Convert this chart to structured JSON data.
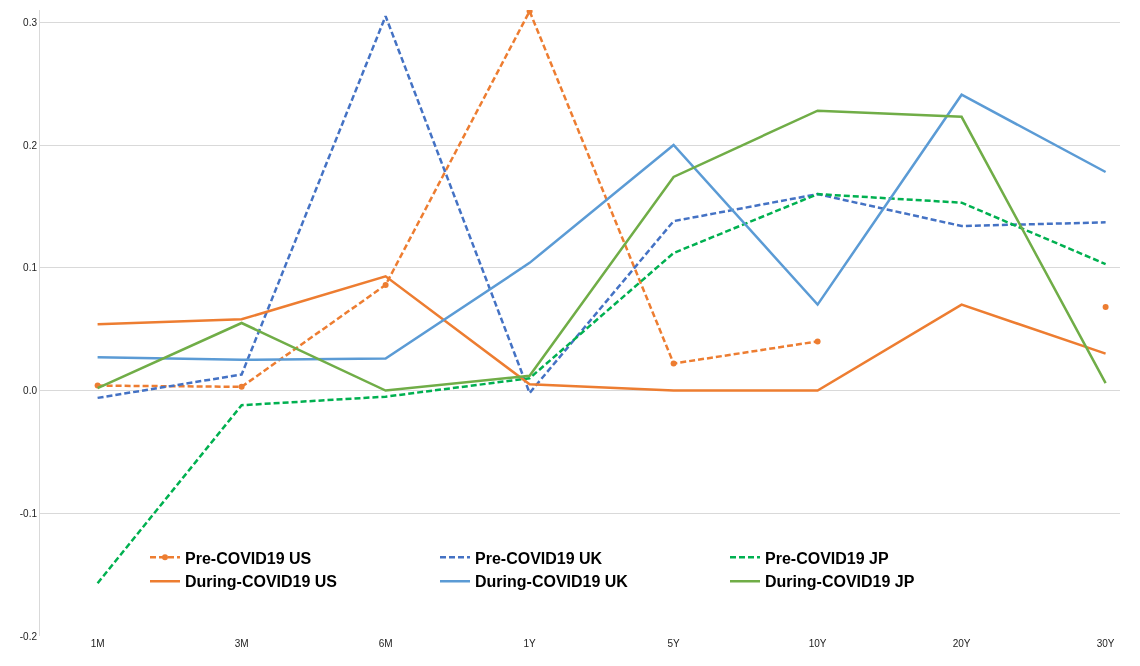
{
  "chart_data": {
    "type": "line",
    "categories": [
      "1M",
      "3M",
      "6M",
      "1Y",
      "5Y",
      "10Y",
      "20Y",
      "30Y"
    ],
    "ylim": [
      -0.2,
      0.31
    ],
    "yticks": [
      {
        "value": -0.2,
        "label": "-0.2"
      },
      {
        "value": -0.1,
        "label": "-0.1"
      },
      {
        "value": 0,
        "label": "0.0"
      },
      {
        "value": 0.1,
        "label": "0.1"
      },
      {
        "value": 0.2,
        "label": "0.2"
      },
      {
        "value": 0.3,
        "label": "0.3"
      }
    ],
    "grid": "y",
    "legend": "bottom",
    "series": [
      {
        "name": "Pre-COVID19 US",
        "color": "#ed7d31",
        "line_style": "dashed",
        "marker": "circle",
        "values": [
          0.004,
          0.003,
          0.086,
          0.309,
          0.022,
          0.04,
          null,
          0.068
        ]
      },
      {
        "name": "Pre-COVID19 UK",
        "color": "#4472c4",
        "line_style": "dashed",
        "values": [
          -0.006,
          0.013,
          0.305,
          -0.002,
          0.138,
          0.16,
          0.134,
          0.137
        ]
      },
      {
        "name": "Pre-COVID19 JP",
        "color": "#00b050",
        "line_style": "dashed",
        "values": [
          -0.157,
          -0.012,
          -0.005,
          0.01,
          0.112,
          0.16,
          0.153,
          0.103
        ]
      },
      {
        "name": "During-COVID19 US",
        "color": "#ed7d31",
        "line_style": "solid",
        "values": [
          0.054,
          0.058,
          0.093,
          0.005,
          0.0,
          0.0,
          0.07,
          0.03
        ]
      },
      {
        "name": "During-COVID19 UK",
        "color": "#5b9bd5",
        "line_style": "solid",
        "values": [
          0.027,
          0.025,
          0.026,
          0.104,
          0.2,
          0.07,
          0.241,
          0.178
        ]
      },
      {
        "name": "During-COVID19 JP",
        "color": "#70ad47",
        "line_style": "solid",
        "values": [
          0.002,
          0.055,
          0.0,
          0.012,
          0.174,
          0.228,
          0.223,
          0.006
        ]
      }
    ]
  }
}
